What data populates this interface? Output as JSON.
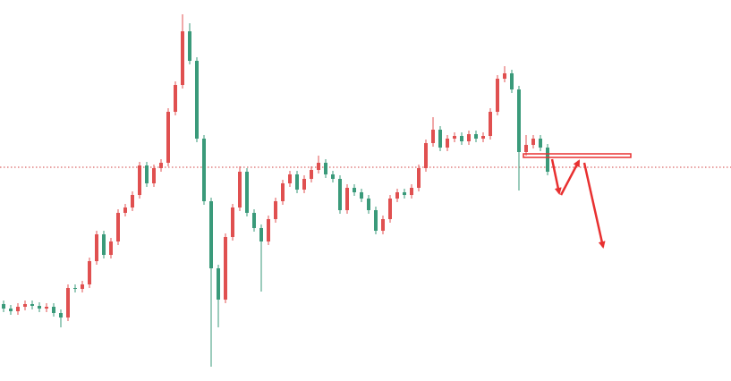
{
  "chart_data": {
    "type": "candlestick",
    "up_color": "#e05050",
    "down_color": "#3a9a7a",
    "ylim": [
      0,
      426
    ],
    "reference_line": 239,
    "reference_color": "#d04040",
    "open": [
      86,
      81,
      78,
      83,
      86,
      84,
      81,
      83,
      76,
      71,
      104,
      103,
      108,
      134,
      164,
      141,
      156,
      188,
      194,
      208,
      241,
      221,
      238,
      244,
      301,
      331,
      391,
      358,
      271,
      201,
      126,
      91,
      161,
      194,
      234,
      188,
      171,
      156,
      181,
      201,
      221,
      231,
      214,
      226,
      236,
      244,
      231,
      226,
      191,
      216,
      211,
      204,
      191,
      168,
      181,
      204,
      211,
      208,
      216,
      238,
      266,
      281,
      261,
      271,
      274,
      268,
      276,
      271,
      274,
      301,
      338,
      344,
      326,
      256,
      264,
      271,
      261
    ],
    "high": [
      90,
      85,
      87,
      90,
      90,
      88,
      87,
      87,
      80,
      108,
      108,
      112,
      138,
      168,
      168,
      160,
      192,
      198,
      212,
      245,
      245,
      242,
      248,
      305,
      335,
      410,
      400,
      362,
      275,
      205,
      130,
      165,
      198,
      240,
      238,
      192,
      175,
      185,
      205,
      225,
      235,
      235,
      230,
      240,
      252,
      248,
      235,
      230,
      220,
      220,
      215,
      208,
      195,
      185,
      208,
      215,
      215,
      220,
      242,
      270,
      295,
      285,
      275,
      278,
      278,
      280,
      280,
      278,
      305,
      342,
      352,
      348,
      330,
      275,
      275,
      275,
      265
    ],
    "low": [
      77,
      74,
      74,
      79,
      80,
      77,
      77,
      72,
      60,
      67,
      99,
      99,
      104,
      130,
      137,
      137,
      152,
      184,
      190,
      204,
      217,
      217,
      234,
      240,
      297,
      327,
      354,
      267,
      197,
      16,
      60,
      87,
      157,
      190,
      184,
      167,
      100,
      152,
      177,
      197,
      217,
      210,
      210,
      222,
      232,
      227,
      222,
      187,
      187,
      207,
      200,
      187,
      164,
      164,
      177,
      200,
      204,
      204,
      212,
      234,
      262,
      257,
      257,
      267,
      264,
      264,
      267,
      267,
      270,
      297,
      334,
      322,
      213,
      252,
      260,
      257,
      230
    ],
    "close": [
      81,
      78,
      83,
      86,
      84,
      81,
      83,
      76,
      71,
      104,
      103,
      108,
      134,
      164,
      141,
      156,
      188,
      194,
      208,
      241,
      221,
      238,
      244,
      301,
      331,
      391,
      358,
      271,
      201,
      126,
      91,
      161,
      194,
      234,
      188,
      171,
      156,
      181,
      201,
      221,
      231,
      214,
      226,
      236,
      244,
      231,
      226,
      191,
      216,
      211,
      204,
      191,
      168,
      181,
      204,
      211,
      208,
      216,
      238,
      266,
      281,
      261,
      271,
      274,
      268,
      276,
      271,
      274,
      301,
      338,
      344,
      326,
      256,
      264,
      271,
      261,
      234
    ]
  }
}
